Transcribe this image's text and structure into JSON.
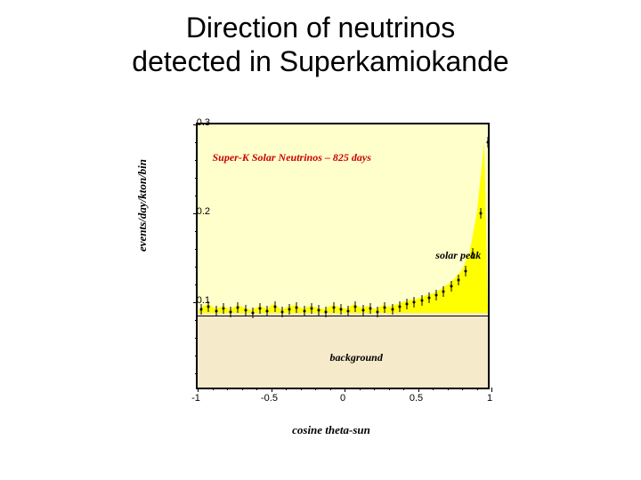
{
  "title_line1": "Direction of neutrinos",
  "title_line2": "detected in Superkamiokande",
  "chart": {
    "type": "scatter-with-fill",
    "chart_title": "Super-K Solar Neutrinos – 825 days",
    "x_axis_label": "cosine theta-sun",
    "y_axis_label": "events/day/kton/bin",
    "xlim": [
      -1,
      1
    ],
    "ylim": [
      0,
      0.3
    ],
    "x_ticks": [
      -1,
      -0.5,
      0,
      0.5,
      1
    ],
    "x_tick_labels": [
      "-1",
      "-0.5",
      "0",
      "0.5",
      "1"
    ],
    "y_ticks": [
      0.1,
      0.2,
      0.3
    ],
    "y_tick_labels": [
      "0.1",
      "0.2",
      "0.3"
    ],
    "y_minor_step": 0.02,
    "x_minor_step": 0.1,
    "background_upper_color": "#ffffcc",
    "background_lower_color": "#f5eaca",
    "background_line_y": 0.085,
    "solar_peak_label": "solar peak",
    "solar_peak_pos_x": 0.62,
    "solar_peak_pos_y": 0.16,
    "background_label": "background",
    "background_pos_x": -0.1,
    "background_pos_y": 0.045,
    "title_pos_x": -0.9,
    "title_pos_y": 0.27,
    "fill_color": "#ffff00",
    "marker_color": "#000000",
    "error_y": 0.006,
    "data": [
      {
        "x": -0.975,
        "y": 0.092
      },
      {
        "x": -0.925,
        "y": 0.095
      },
      {
        "x": -0.875,
        "y": 0.09
      },
      {
        "x": -0.825,
        "y": 0.093
      },
      {
        "x": -0.775,
        "y": 0.089
      },
      {
        "x": -0.725,
        "y": 0.094
      },
      {
        "x": -0.675,
        "y": 0.091
      },
      {
        "x": -0.625,
        "y": 0.088
      },
      {
        "x": -0.575,
        "y": 0.093
      },
      {
        "x": -0.525,
        "y": 0.09
      },
      {
        "x": -0.475,
        "y": 0.095
      },
      {
        "x": -0.425,
        "y": 0.089
      },
      {
        "x": -0.375,
        "y": 0.092
      },
      {
        "x": -0.325,
        "y": 0.094
      },
      {
        "x": -0.275,
        "y": 0.09
      },
      {
        "x": -0.225,
        "y": 0.093
      },
      {
        "x": -0.175,
        "y": 0.091
      },
      {
        "x": -0.125,
        "y": 0.089
      },
      {
        "x": -0.075,
        "y": 0.094
      },
      {
        "x": -0.025,
        "y": 0.092
      },
      {
        "x": 0.025,
        "y": 0.09
      },
      {
        "x": 0.075,
        "y": 0.095
      },
      {
        "x": 0.125,
        "y": 0.091
      },
      {
        "x": 0.175,
        "y": 0.093
      },
      {
        "x": 0.225,
        "y": 0.089
      },
      {
        "x": 0.275,
        "y": 0.094
      },
      {
        "x": 0.325,
        "y": 0.092
      },
      {
        "x": 0.375,
        "y": 0.095
      },
      {
        "x": 0.425,
        "y": 0.098
      },
      {
        "x": 0.475,
        "y": 0.1
      },
      {
        "x": 0.525,
        "y": 0.102
      },
      {
        "x": 0.575,
        "y": 0.105
      },
      {
        "x": 0.625,
        "y": 0.108
      },
      {
        "x": 0.675,
        "y": 0.112
      },
      {
        "x": 0.725,
        "y": 0.118
      },
      {
        "x": 0.775,
        "y": 0.125
      },
      {
        "x": 0.825,
        "y": 0.135
      },
      {
        "x": 0.875,
        "y": 0.155
      },
      {
        "x": 0.925,
        "y": 0.2
      },
      {
        "x": 0.975,
        "y": 0.28
      }
    ]
  }
}
